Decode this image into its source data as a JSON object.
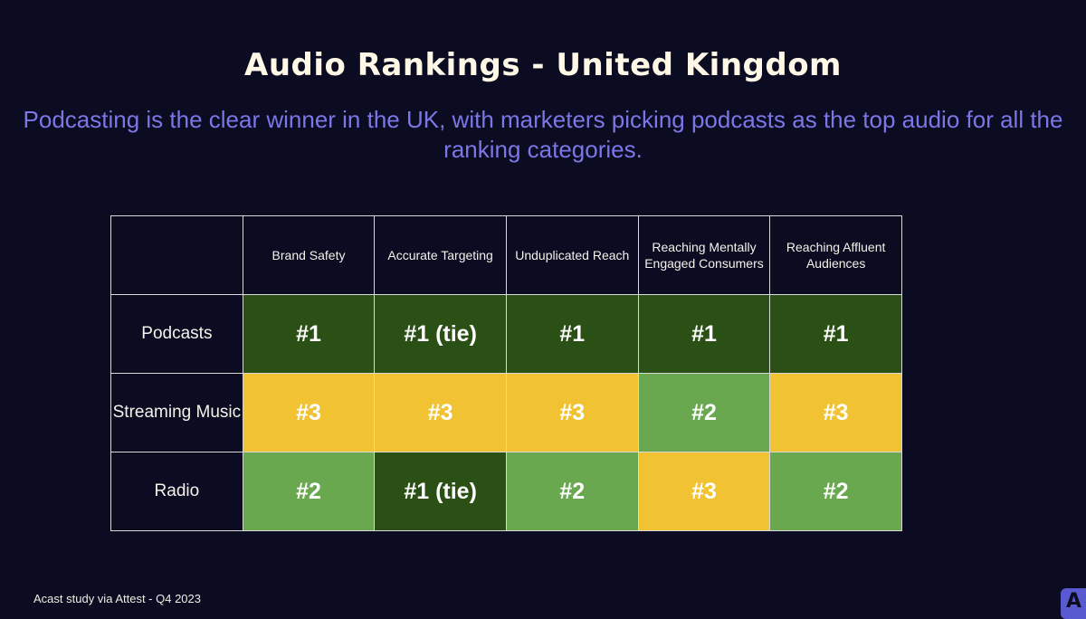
{
  "title": "Audio Rankings - United Kingdom",
  "subtitle": "Podcasting is the clear winner in the UK, with marketers picking podcasts as the top audio for all the ranking categories.",
  "footer": "Acast study via Attest - Q4 2023",
  "logo": {
    "letter": "A",
    "icon": "acast-logo-icon"
  },
  "colors": {
    "background": "#0b0b21",
    "rank1": "#2a5016",
    "rank2": "#69a84f",
    "rank3": "#f1c232",
    "subtitle": "#7b77e6"
  },
  "chart_data": {
    "type": "table",
    "title": "Audio Rankings - United Kingdom",
    "columns": [
      "Brand Safety",
      "Accurate Targeting",
      "Unduplicated Reach",
      "Reaching Mentally Engaged Consumers",
      "Reaching Affluent Audiences"
    ],
    "rows": [
      {
        "label": "Podcasts",
        "values": [
          "#1",
          "#1 (tie)",
          "#1",
          "#1",
          "#1"
        ],
        "ranks": [
          1,
          1,
          1,
          1,
          1
        ]
      },
      {
        "label": "Streaming Music",
        "values": [
          "#3",
          "#3",
          "#3",
          "#2",
          "#3"
        ],
        "ranks": [
          3,
          3,
          3,
          2,
          3
        ]
      },
      {
        "label": "Radio",
        "values": [
          "#2",
          "#1 (tie)",
          "#2",
          "#3",
          "#2"
        ],
        "ranks": [
          2,
          1,
          2,
          3,
          2
        ]
      }
    ]
  }
}
